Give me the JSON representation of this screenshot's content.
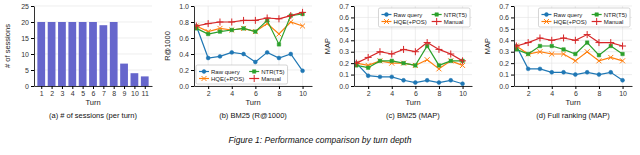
{
  "chart_data": [
    {
      "type": "bar",
      "title": "(a) # of sessions (per turn)",
      "xlabel": "Turn",
      "ylabel": "# of sessions",
      "x": [
        1,
        2,
        3,
        4,
        5,
        6,
        7,
        8,
        9,
        10,
        11
      ],
      "values": [
        20,
        20,
        20,
        20,
        20,
        20,
        19,
        20,
        7,
        4,
        3
      ],
      "color": "#6666cc",
      "xlim": [
        0.3,
        11.7
      ],
      "xticks": [
        1,
        2,
        3,
        4,
        5,
        6,
        7,
        8,
        9,
        10,
        11
      ],
      "ylim": [
        0,
        25
      ],
      "yticks": [
        0,
        5,
        10,
        15,
        20,
        25
      ],
      "grid": "y"
    },
    {
      "type": "line",
      "title": "(b) BM25 (R@1000)",
      "xlabel": "Turn",
      "ylabel": "R@1000",
      "x": [
        1,
        2,
        3,
        4,
        5,
        6,
        7,
        8,
        9,
        10
      ],
      "series": [
        {
          "name": "Raw query",
          "color": "#1f77b4",
          "marker": "circle",
          "values": [
            0.75,
            0.35,
            0.37,
            0.42,
            0.4,
            0.3,
            0.42,
            0.35,
            0.4,
            0.19
          ]
        },
        {
          "name": "HQE(+POS)",
          "color": "#ff7f0e",
          "marker": "x",
          "values": [
            0.75,
            0.68,
            0.72,
            0.7,
            0.72,
            0.68,
            0.78,
            0.65,
            0.8,
            0.75
          ]
        },
        {
          "name": "NTR(T5)",
          "color": "#2ca02c",
          "marker": "square",
          "values": [
            0.72,
            0.65,
            0.68,
            0.7,
            0.72,
            0.68,
            0.82,
            0.52,
            0.88,
            0.9
          ]
        },
        {
          "name": "Manual",
          "color": "#d62728",
          "marker": "plus",
          "values": [
            0.75,
            0.78,
            0.8,
            0.8,
            0.82,
            0.82,
            0.85,
            0.84,
            0.88,
            0.92
          ]
        }
      ],
      "xlim": [
        0.8,
        10.8
      ],
      "xticks": [
        2,
        4,
        6,
        8,
        10
      ],
      "ylim": [
        0.0,
        1.0
      ],
      "yticks": [
        {
          "value": 0.0,
          "label": "0.0"
        },
        0.2,
        0.4,
        0.6,
        0.8,
        {
          "value": 1.0,
          "label": "1.0"
        }
      ],
      "grid": true,
      "legend": "lower left"
    },
    {
      "type": "line",
      "title": "(c) BM25 (MAP)",
      "xlabel": "Turn",
      "ylabel": "MAP",
      "x": [
        1,
        2,
        3,
        4,
        5,
        6,
        7,
        8,
        9,
        10
      ],
      "series": [
        {
          "name": "Raw query",
          "color": "#1f77b4",
          "marker": "circle",
          "values": [
            0.2,
            0.09,
            0.08,
            0.08,
            0.05,
            0.03,
            0.05,
            0.03,
            0.05,
            0.02
          ]
        },
        {
          "name": "HQE(+POS)",
          "color": "#ff7f0e",
          "marker": "x",
          "values": [
            0.2,
            0.18,
            0.22,
            0.2,
            0.2,
            0.18,
            0.23,
            0.15,
            0.22,
            0.18
          ]
        },
        {
          "name": "NTR(T5)",
          "color": "#2ca02c",
          "marker": "square",
          "values": [
            0.18,
            0.16,
            0.22,
            0.22,
            0.2,
            0.18,
            0.35,
            0.18,
            0.22,
            0.22
          ]
        },
        {
          "name": "Manual",
          "color": "#d62728",
          "marker": "plus",
          "values": [
            0.2,
            0.25,
            0.3,
            0.28,
            0.32,
            0.3,
            0.38,
            0.32,
            0.28,
            0.22
          ]
        }
      ],
      "xlim": [
        0.8,
        10.8
      ],
      "xticks": [
        2,
        4,
        6,
        8,
        10
      ],
      "ylim": [
        0.0,
        0.7
      ],
      "yticks": [
        {
          "value": 0.0,
          "label": "0.0"
        },
        0.1,
        0.2,
        0.3,
        0.4,
        0.5,
        0.6,
        0.7
      ],
      "grid": true,
      "legend": "upper right"
    },
    {
      "type": "line",
      "title": "(d) Full ranking (MAP)",
      "xlabel": "Turn",
      "ylabel": "MAP",
      "x": [
        1,
        2,
        3,
        4,
        5,
        6,
        7,
        8,
        9,
        10
      ],
      "series": [
        {
          "name": "Raw query",
          "color": "#1f77b4",
          "marker": "circle",
          "values": [
            0.35,
            0.15,
            0.15,
            0.12,
            0.12,
            0.1,
            0.12,
            0.1,
            0.12,
            0.05
          ]
        },
        {
          "name": "HQE(+POS)",
          "color": "#ff7f0e",
          "marker": "x",
          "values": [
            0.35,
            0.28,
            0.3,
            0.28,
            0.28,
            0.22,
            0.3,
            0.22,
            0.25,
            0.22
          ]
        },
        {
          "name": "NTR(T5)",
          "color": "#2ca02c",
          "marker": "square",
          "values": [
            0.32,
            0.28,
            0.35,
            0.35,
            0.32,
            0.28,
            0.38,
            0.27,
            0.35,
            0.28
          ]
        },
        {
          "name": "Manual",
          "color": "#d62728",
          "marker": "plus",
          "values": [
            0.35,
            0.38,
            0.42,
            0.4,
            0.42,
            0.4,
            0.45,
            0.38,
            0.38,
            0.35
          ]
        }
      ],
      "xlim": [
        0.8,
        10.8
      ],
      "xticks": [
        2,
        4,
        6,
        8,
        10
      ],
      "ylim": [
        0.0,
        0.7
      ],
      "yticks": [
        {
          "value": 0.0,
          "label": "0.0"
        },
        0.1,
        0.2,
        0.3,
        0.4,
        0.5,
        0.6,
        0.7
      ],
      "grid": true,
      "legend": "upper right"
    }
  ],
  "caption": "Figure 1: Performance comparison by turn depth"
}
